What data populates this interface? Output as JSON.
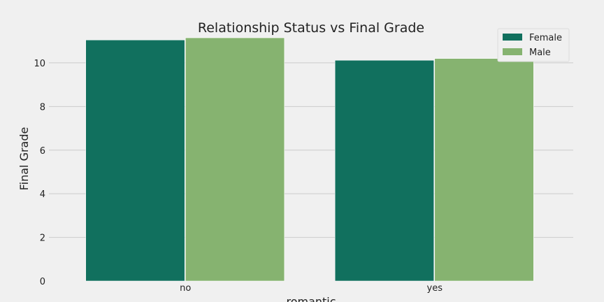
{
  "chart_data": {
    "type": "bar",
    "title": "Relationship Status vs Final Grade",
    "xlabel": "romantic",
    "ylabel": "Final Grade",
    "categories": [
      "no",
      "yes"
    ],
    "series": [
      {
        "name": "Female",
        "values": [
          11.05,
          10.12
        ],
        "color": "#11705e"
      },
      {
        "name": "Male",
        "values": [
          11.15,
          10.2
        ],
        "color": "#86b370"
      }
    ],
    "ylim": [
      0,
      11.6
    ],
    "yticks": [
      0,
      2,
      4,
      6,
      8,
      10
    ],
    "grid": true,
    "legend_position": "top-right"
  },
  "colors": {
    "background": "#f0f0f0",
    "grid": "#cbcbcb",
    "text": "#222222"
  }
}
